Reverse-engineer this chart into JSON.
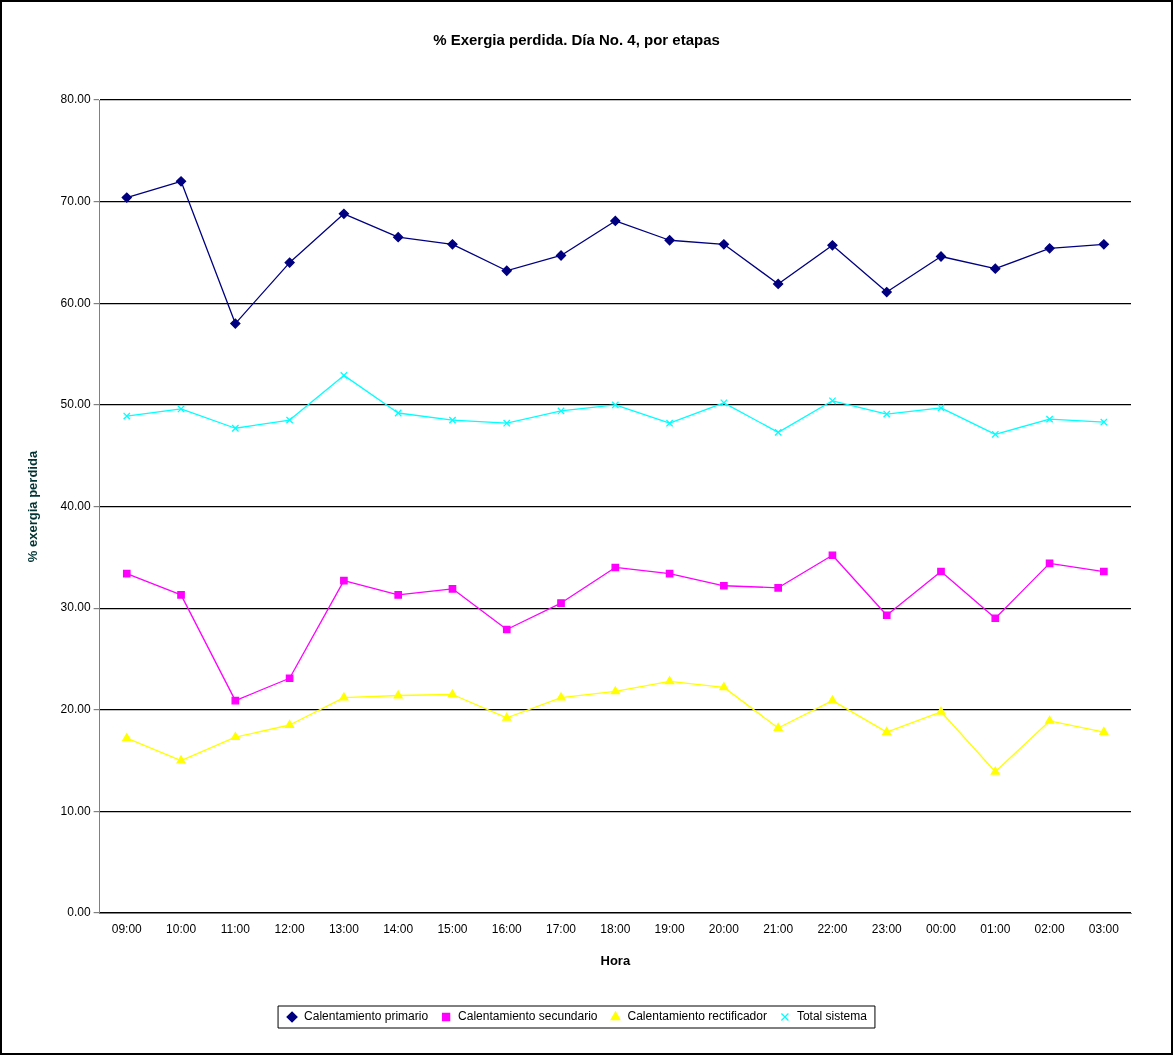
{
  "chart_data": {
    "type": "line",
    "title": "% Exergia perdida. Día No. 4, por etapas",
    "xlabel": "Hora",
    "ylabel": "% exergia perdida",
    "categories": [
      "09:00",
      "10:00",
      "11:00",
      "12:00",
      "13:00",
      "14:00",
      "15:00",
      "16:00",
      "17:00",
      "18:00",
      "19:00",
      "20:00",
      "21:00",
      "22:00",
      "23:00",
      "00:00",
      "01:00",
      "02:00",
      "03:00"
    ],
    "series": [
      {
        "name": "Calentamiento primario",
        "color": "#000080",
        "marker": "diamond",
        "values": [
          70.4,
          72.0,
          58.0,
          64.0,
          68.8,
          66.5,
          65.8,
          63.2,
          64.7,
          68.1,
          66.2,
          65.8,
          61.9,
          65.7,
          61.1,
          64.6,
          63.4,
          65.4,
          65.8
        ]
      },
      {
        "name": "Calentamiento secundario",
        "color": "#ff00ff",
        "marker": "square",
        "values": [
          33.4,
          31.3,
          20.9,
          23.1,
          32.7,
          31.3,
          31.9,
          27.9,
          30.5,
          34.0,
          33.4,
          32.2,
          32.0,
          35.2,
          29.3,
          33.6,
          29.0,
          34.4,
          33.6
        ]
      },
      {
        "name": "Calentamiento rectificador",
        "color": "#ffff00",
        "marker": "triangle",
        "values": [
          17.2,
          15.0,
          17.3,
          18.5,
          21.2,
          21.4,
          21.5,
          19.2,
          21.2,
          21.8,
          22.8,
          22.2,
          18.2,
          20.9,
          17.8,
          19.8,
          13.9,
          18.9,
          17.8
        ]
      },
      {
        "name": "Total sistema",
        "color": "#00ffff",
        "marker": "cross",
        "values": [
          48.9,
          49.6,
          47.7,
          48.5,
          52.9,
          49.2,
          48.5,
          48.2,
          49.4,
          50.0,
          48.2,
          50.2,
          47.3,
          50.4,
          49.1,
          49.7,
          47.1,
          48.6,
          48.3
        ]
      }
    ],
    "ylim": [
      0,
      80
    ],
    "yticks": [
      {
        "value": 0,
        "label": "0.00"
      },
      {
        "value": 10,
        "label": "10.00"
      },
      {
        "value": 20,
        "label": "20.00"
      },
      {
        "value": 30,
        "label": "30.00"
      },
      {
        "value": 40,
        "label": "40.00"
      },
      {
        "value": 50,
        "label": "50.00"
      },
      {
        "value": 60,
        "label": "60.00"
      },
      {
        "value": 70,
        "label": "70.00"
      },
      {
        "value": 80,
        "label": "80.00"
      }
    ],
    "grid": "y",
    "legend": "bottom",
    "line_style": "solid"
  }
}
